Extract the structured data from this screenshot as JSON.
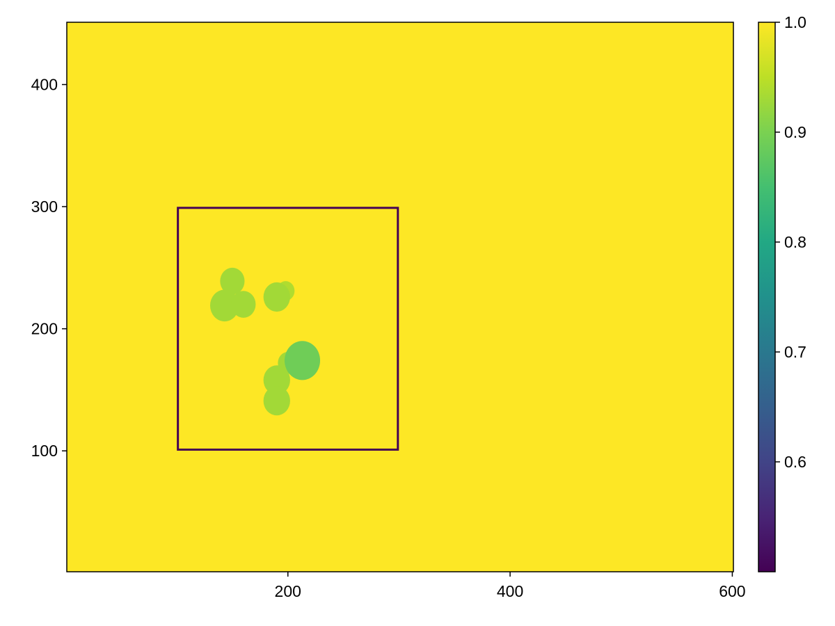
{
  "chart_data": {
    "type": "heatmap",
    "title": "",
    "xlabel": "",
    "ylabel": "",
    "xlim": [
      1,
      601
    ],
    "ylim": [
      1,
      451
    ],
    "x_ticks": [
      200,
      400,
      600
    ],
    "y_ticks": [
      100,
      200,
      300,
      400
    ],
    "grid": false,
    "colormap": "viridis",
    "background_value": 1.0,
    "colorbar": {
      "position": "right",
      "range": [
        0.5,
        1.0
      ],
      "ticks": [
        0.6,
        0.7,
        0.8,
        0.9,
        1.0
      ],
      "tick_labels": [
        "0.6",
        "0.7",
        "0.8",
        "0.9",
        "1.0"
      ]
    },
    "rectangle_outline": {
      "x": [
        101,
        299
      ],
      "y": [
        101,
        299
      ],
      "value": 0.5
    },
    "discs": [
      {
        "x": 150,
        "y": 239,
        "r": 11,
        "value": 0.93
      },
      {
        "x": 143,
        "y": 219,
        "r": 13,
        "value": 0.93
      },
      {
        "x": 160,
        "y": 220,
        "r": 11,
        "value": 0.93
      },
      {
        "x": 198,
        "y": 231,
        "r": 8,
        "value": 0.94
      },
      {
        "x": 190,
        "y": 226,
        "r": 12,
        "value": 0.93
      },
      {
        "x": 200,
        "y": 172,
        "r": 9,
        "value": 0.93
      },
      {
        "x": 190,
        "y": 158,
        "r": 12,
        "value": 0.93
      },
      {
        "x": 190,
        "y": 141,
        "r": 12,
        "value": 0.93
      },
      {
        "x": 213,
        "y": 174,
        "r": 16,
        "value": 0.89
      }
    ]
  }
}
